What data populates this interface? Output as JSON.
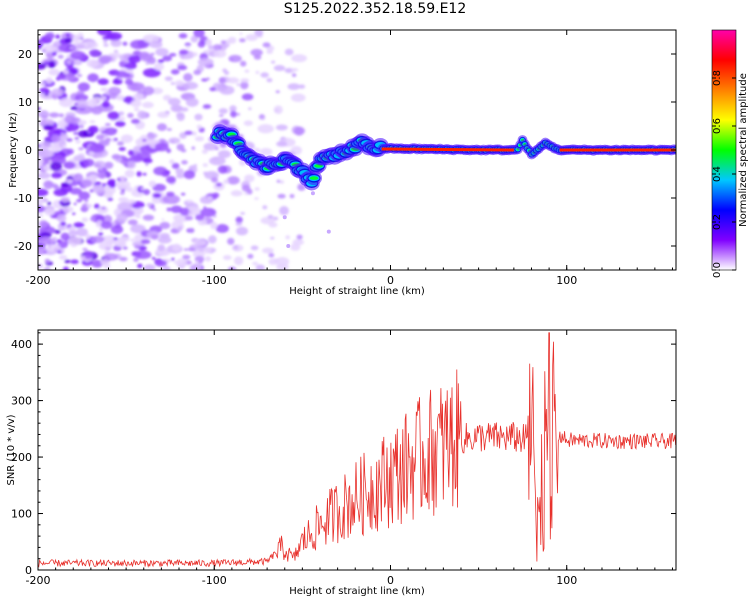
{
  "figure": {
    "title": "S125.2022.352.18.59.E12"
  },
  "chart_data": [
    {
      "type": "heatmap",
      "xlabel": "Height of straight line (km)",
      "ylabel": "Frequency (Hz)",
      "xlim": [
        -200,
        162
      ],
      "ylim": [
        -25,
        25
      ],
      "xticks": [
        -200,
        -100,
        0,
        100
      ],
      "yticks": [
        -20,
        -10,
        0,
        10,
        20
      ],
      "colorbar": {
        "label": "Normalized spectral amplitude",
        "range": [
          0,
          1
        ],
        "ticks": [
          "0.0",
          "0.2",
          "0.4",
          "0.6",
          "0.8"
        ],
        "colormap": [
          "#ffffff",
          "#8000ff",
          "#0000ff",
          "#00c8ff",
          "#00ff00",
          "#ffff00",
          "#ff8000",
          "#ff0000",
          "#ff00aa"
        ]
      },
      "ridge": [
        {
          "x": -100,
          "y": 3.5
        },
        {
          "x": -90,
          "y": 2.5
        },
        {
          "x": -80,
          "y": -1.5
        },
        {
          "x": -70,
          "y": -3.5
        },
        {
          "x": -60,
          "y": -2
        },
        {
          "x": -50,
          "y": -4
        },
        {
          "x": -45,
          "y": -7
        },
        {
          "x": -40,
          "y": -2
        },
        {
          "x": -30,
          "y": -1
        },
        {
          "x": -20,
          "y": 0.5
        },
        {
          "x": -15,
          "y": 1.5
        },
        {
          "x": -10,
          "y": 0.5
        },
        {
          "x": 0,
          "y": 0.3
        },
        {
          "x": 20,
          "y": 0.2
        },
        {
          "x": 50,
          "y": 0
        },
        {
          "x": 72,
          "y": 0
        },
        {
          "x": 75,
          "y": 2
        },
        {
          "x": 80,
          "y": -1
        },
        {
          "x": 88,
          "y": 1.5
        },
        {
          "x": 95,
          "y": 0
        },
        {
          "x": 162,
          "y": 0
        }
      ]
    },
    {
      "type": "line",
      "xlabel": "Height of straight line (km)",
      "ylabel": "SNR (10 * v/v)",
      "xlim": [
        -200,
        162
      ],
      "ylim": [
        0,
        425
      ],
      "xticks": [
        -200,
        -100,
        0,
        100
      ],
      "yticks": [
        0,
        100,
        200,
        300,
        400
      ],
      "series": [
        {
          "color": "#e8322d",
          "envelope": [
            {
              "x": -200,
              "y": 12
            },
            {
              "x": -150,
              "y": 12
            },
            {
              "x": -100,
              "y": 12
            },
            {
              "x": -70,
              "y": 15
            },
            {
              "x": -62,
              "y": 40
            },
            {
              "x": -55,
              "y": 20
            },
            {
              "x": -50,
              "y": 50
            },
            {
              "x": -40,
              "y": 80
            },
            {
              "x": -30,
              "y": 105
            },
            {
              "x": -20,
              "y": 125
            },
            {
              "x": -10,
              "y": 145
            },
            {
              "x": 0,
              "y": 165
            },
            {
              "x": 10,
              "y": 185
            },
            {
              "x": 20,
              "y": 205
            },
            {
              "x": 30,
              "y": 220
            },
            {
              "x": 40,
              "y": 232
            },
            {
              "x": 50,
              "y": 236
            },
            {
              "x": 60,
              "y": 235
            },
            {
              "x": 70,
              "y": 235
            },
            {
              "x": 78,
              "y": 230
            },
            {
              "x": 82,
              "y": 215
            },
            {
              "x": 85,
              "y": 60
            },
            {
              "x": 88,
              "y": 300
            },
            {
              "x": 90,
              "y": 250
            },
            {
              "x": 95,
              "y": 240
            },
            {
              "x": 100,
              "y": 230
            },
            {
              "x": 130,
              "y": 228
            },
            {
              "x": 162,
              "y": 228
            }
          ],
          "peak": {
            "x": 90,
            "y": 420
          },
          "dip": {
            "x": 83,
            "y": 15
          }
        }
      ]
    }
  ]
}
